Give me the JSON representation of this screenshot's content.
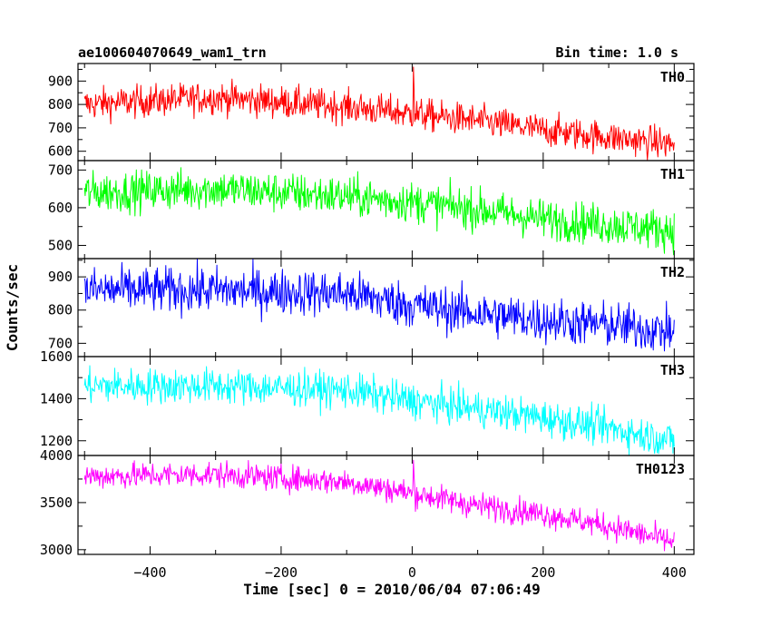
{
  "chart_data": {
    "type": "line",
    "title": "ae100604070649_wam1_trn",
    "subtitle": "Bin time: 1.0 s",
    "xlabel": "Time [sec] 0 = 2010/06/04 07:06:49",
    "ylabel": "Counts/sec",
    "xlim": [
      -510,
      430
    ],
    "x_ticks": [
      -400,
      -200,
      0,
      200,
      400
    ],
    "x_tick_labels": [
      "−400",
      "−200",
      "0",
      "200",
      "400"
    ],
    "x_data_range": [
      -500,
      400
    ],
    "grid": false,
    "series": [
      {
        "name": "TH0",
        "color": "#ff0000",
        "ylim": [
          560,
          975
        ],
        "yticks": [
          600,
          700,
          800,
          900
        ],
        "ytick_labels": [
          "600",
          "700",
          "800",
          "900"
        ],
        "trend_x": [
          -500,
          -300,
          -100,
          0,
          100,
          200,
          300,
          400
        ],
        "trend_y": [
          800,
          830,
          790,
          760,
          730,
          690,
          660,
          630
        ],
        "noise": 45,
        "features": [
          {
            "x": 2,
            "y": 960,
            "label": ""
          }
        ]
      },
      {
        "name": "TH1",
        "color": "#00ff00",
        "ylim": [
          465,
          725
        ],
        "yticks": [
          500,
          600,
          700
        ],
        "ytick_labels": [
          "500",
          "600",
          "700"
        ],
        "trend_x": [
          -500,
          -300,
          -100,
          0,
          100,
          200,
          300,
          400
        ],
        "trend_y": [
          640,
          650,
          630,
          615,
          595,
          570,
          555,
          540
        ],
        "noise": 35,
        "features": []
      },
      {
        "name": "TH2",
        "color": "#0000ff",
        "ylim": [
          660,
          955
        ],
        "yticks": [
          700,
          800,
          900
        ],
        "ytick_labels": [
          "700",
          "800",
          "900"
        ],
        "trend_x": [
          -500,
          -300,
          -100,
          0,
          100,
          200,
          300,
          400
        ],
        "trend_y": [
          860,
          860,
          850,
          815,
          790,
          770,
          755,
          735
        ],
        "noise": 45,
        "features": []
      },
      {
        "name": "TH3",
        "color": "#00ffff",
        "ylim": [
          1130,
          1600
        ],
        "yticks": [
          1200,
          1400,
          1600
        ],
        "ytick_labels": [
          "1200",
          "1400",
          "1600"
        ],
        "trend_x": [
          -500,
          -300,
          -100,
          0,
          100,
          200,
          300,
          400
        ],
        "trend_y": [
          1460,
          1460,
          1440,
          1390,
          1350,
          1310,
          1260,
          1200
        ],
        "noise": 55,
        "features": []
      },
      {
        "name": "TH0123",
        "color": "#ff00ff",
        "ylim": [
          2950,
          4000
        ],
        "yticks": [
          3000,
          3500,
          4000
        ],
        "ytick_labels": [
          "3000",
          "3500",
          "4000"
        ],
        "trend_x": [
          -500,
          -300,
          -100,
          0,
          100,
          200,
          300,
          400
        ],
        "trend_y": [
          3780,
          3800,
          3720,
          3600,
          3470,
          3380,
          3250,
          3080
        ],
        "noise": 90,
        "features": [
          {
            "x": 2,
            "y": 3950,
            "label": ""
          }
        ]
      }
    ]
  }
}
